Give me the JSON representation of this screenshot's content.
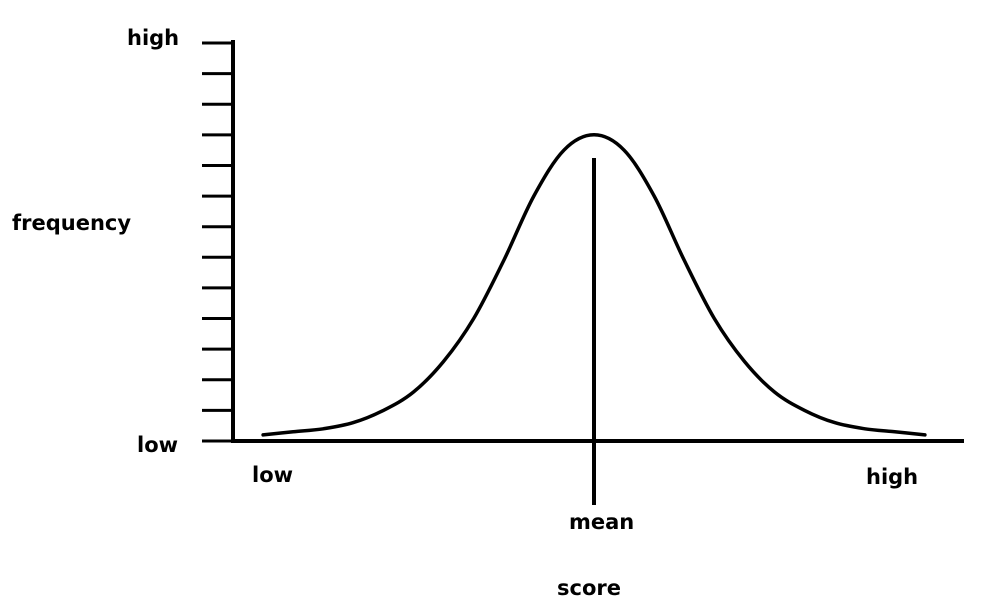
{
  "chart_data": {
    "type": "line",
    "title": "",
    "xlabel": "score",
    "ylabel": "frequency",
    "x_tick_labels": {
      "left": "low",
      "right": "high",
      "marker": "mean"
    },
    "y_tick_labels": {
      "bottom": "low",
      "top": "high"
    },
    "y_tick_count": 14,
    "ylim": [
      0,
      13
    ],
    "xlim": [
      -3.6,
      3.6
    ],
    "grid": false,
    "legend": "none",
    "series": [
      {
        "x": [
          -3.3,
          -3.0,
          -2.7,
          -2.4,
          -2.1,
          -1.8,
          -1.5,
          -1.2,
          -0.9,
          -0.6,
          -0.3,
          0.0,
          0.3,
          0.6,
          0.9,
          1.2,
          1.5,
          1.8,
          2.1,
          2.4,
          2.7,
          3.0,
          3.3
        ],
        "y": [
          0.2,
          0.3,
          0.4,
          0.6,
          1.0,
          1.6,
          2.6,
          4.0,
          5.9,
          8.0,
          9.5,
          10.0,
          9.5,
          8.0,
          5.9,
          4.0,
          2.6,
          1.6,
          1.0,
          0.6,
          0.4,
          0.3,
          0.2
        ]
      }
    ],
    "colors": {
      "line": "#000000",
      "background": "#ffffff"
    }
  }
}
